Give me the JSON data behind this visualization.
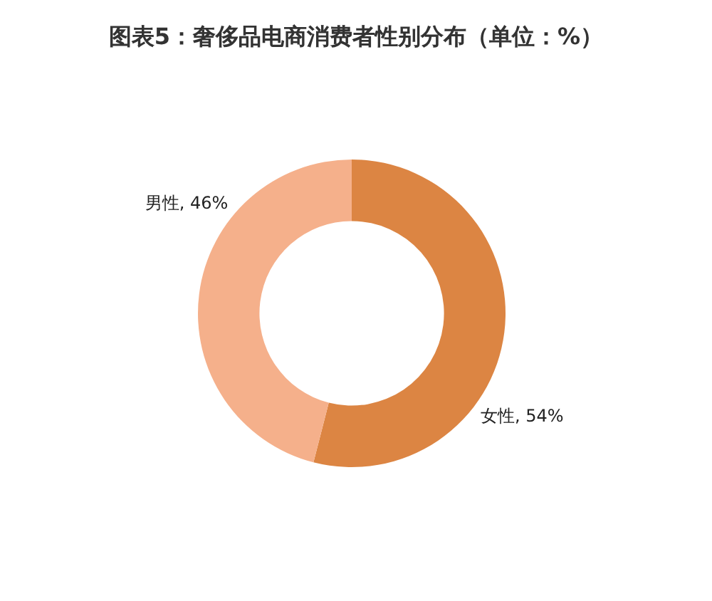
{
  "chart_data": {
    "type": "donut",
    "title": "图表5：奢侈品电商消费者性别分布（单位：%）",
    "categories": [
      "女性",
      "男性"
    ],
    "values": [
      54,
      46
    ],
    "colors": [
      "#dc8543",
      "#f5b08b"
    ],
    "value_labels": [
      "54%",
      "46%"
    ]
  }
}
